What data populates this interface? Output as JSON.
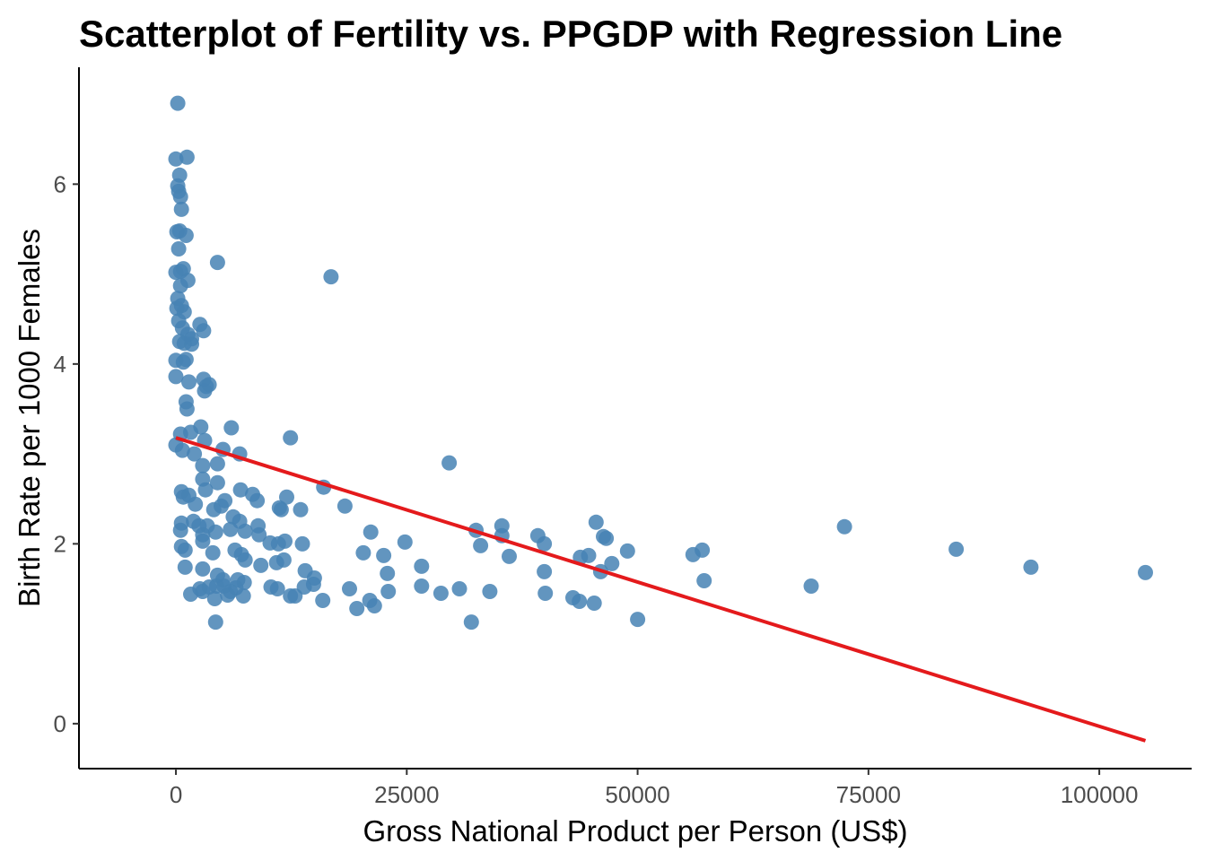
{
  "chart_data": {
    "type": "scatter",
    "title": "Scatterplot of Fertility vs. PPGDP with Regression Line",
    "xlabel": "Gross National Product per Person (US$)",
    "ylabel": "Birth Rate per 1000 Females",
    "xlim": [
      -10500,
      110000
    ],
    "ylim": [
      -0.5,
      7.3
    ],
    "xticks": [
      0,
      25000,
      50000,
      75000,
      100000
    ],
    "xtick_labels": [
      "0",
      "25000",
      "50000",
      "75000",
      "100000"
    ],
    "yticks": [
      0,
      2,
      4,
      6
    ],
    "ytick_labels": [
      "0",
      "2",
      "4",
      "6"
    ],
    "grid": false,
    "legend": "none",
    "point_color": "#4682B4",
    "line_color": "#E41A1C",
    "regression_line": {
      "x": [
        0,
        105000
      ],
      "y": [
        3.18,
        -0.19
      ]
    },
    "points": [
      [
        200,
        6.9
      ],
      [
        1200,
        6.3
      ],
      [
        0,
        6.28
      ],
      [
        400,
        6.1
      ],
      [
        200,
        5.98
      ],
      [
        300,
        5.92
      ],
      [
        500,
        5.86
      ],
      [
        600,
        5.72
      ],
      [
        400,
        5.48
      ],
      [
        100,
        5.47
      ],
      [
        1100,
        5.43
      ],
      [
        300,
        5.28
      ],
      [
        4500,
        5.13
      ],
      [
        16800,
        4.97
      ],
      [
        800,
        5.06
      ],
      [
        0,
        5.02
      ],
      [
        500,
        5.03
      ],
      [
        1300,
        4.93
      ],
      [
        500,
        4.87
      ],
      [
        200,
        4.73
      ],
      [
        600,
        4.65
      ],
      [
        100,
        4.62
      ],
      [
        900,
        4.58
      ],
      [
        300,
        4.48
      ],
      [
        2600,
        4.44
      ],
      [
        700,
        4.4
      ],
      [
        3000,
        4.37
      ],
      [
        1300,
        4.33
      ],
      [
        1700,
        4.28
      ],
      [
        1700,
        4.22
      ],
      [
        400,
        4.25
      ],
      [
        900,
        4.23
      ],
      [
        1100,
        4.05
      ],
      [
        0,
        4.04
      ],
      [
        800,
        4.02
      ],
      [
        3000,
        3.83
      ],
      [
        1400,
        3.8
      ],
      [
        3300,
        3.75
      ],
      [
        3600,
        3.77
      ],
      [
        0,
        3.86
      ],
      [
        3100,
        3.7
      ],
      [
        1100,
        3.58
      ],
      [
        1200,
        3.5
      ],
      [
        2700,
        3.3
      ],
      [
        6000,
        3.29
      ],
      [
        12400,
        3.18
      ],
      [
        500,
        3.22
      ],
      [
        1600,
        3.24
      ],
      [
        3100,
        3.15
      ],
      [
        0,
        3.1
      ],
      [
        700,
        3.04
      ],
      [
        5100,
        3.05
      ],
      [
        6900,
        3.0
      ],
      [
        2000,
        3.0
      ],
      [
        4500,
        2.89
      ],
      [
        29600,
        2.9
      ],
      [
        2900,
        2.87
      ],
      [
        2900,
        2.72
      ],
      [
        4500,
        2.68
      ],
      [
        600,
        2.58
      ],
      [
        16000,
        2.63
      ],
      [
        3200,
        2.6
      ],
      [
        7000,
        2.6
      ],
      [
        800,
        2.52
      ],
      [
        1400,
        2.54
      ],
      [
        12000,
        2.52
      ],
      [
        8300,
        2.55
      ],
      [
        5300,
        2.48
      ],
      [
        4900,
        2.42
      ],
      [
        8800,
        2.48
      ],
      [
        2100,
        2.44
      ],
      [
        11400,
        2.38
      ],
      [
        13500,
        2.38
      ],
      [
        18300,
        2.42
      ],
      [
        11200,
        2.4
      ],
      [
        4100,
        2.38
      ],
      [
        6200,
        2.3
      ],
      [
        600,
        2.23
      ],
      [
        1900,
        2.25
      ],
      [
        2500,
        2.2
      ],
      [
        3400,
        2.2
      ],
      [
        6900,
        2.25
      ],
      [
        8900,
        2.2
      ],
      [
        72400,
        2.19
      ],
      [
        35300,
        2.2
      ],
      [
        45500,
        2.24
      ],
      [
        32500,
        2.15
      ],
      [
        21100,
        2.13
      ],
      [
        4300,
        2.13
      ],
      [
        2900,
        2.1
      ],
      [
        5900,
        2.16
      ],
      [
        7500,
        2.14
      ],
      [
        9000,
        2.1
      ],
      [
        10200,
        2.01
      ],
      [
        11100,
        2.0
      ],
      [
        11800,
        2.03
      ],
      [
        2900,
        2.03
      ],
      [
        24800,
        2.02
      ],
      [
        35300,
        2.09
      ],
      [
        39200,
        2.09
      ],
      [
        46300,
        2.08
      ],
      [
        46600,
        2.06
      ],
      [
        33000,
        1.98
      ],
      [
        39900,
        2.0
      ],
      [
        13700,
        2.0
      ],
      [
        500,
        2.15
      ],
      [
        600,
        1.97
      ],
      [
        1000,
        1.93
      ],
      [
        4000,
        1.9
      ],
      [
        6400,
        1.93
      ],
      [
        7100,
        1.88
      ],
      [
        20300,
        1.9
      ],
      [
        22500,
        1.87
      ],
      [
        48900,
        1.92
      ],
      [
        57000,
        1.93
      ],
      [
        56000,
        1.88
      ],
      [
        84500,
        1.94
      ],
      [
        43800,
        1.85
      ],
      [
        44700,
        1.87
      ],
      [
        36100,
        1.86
      ],
      [
        7500,
        1.82
      ],
      [
        10900,
        1.79
      ],
      [
        11700,
        1.82
      ],
      [
        47200,
        1.78
      ],
      [
        92600,
        1.74
      ],
      [
        1000,
        1.74
      ],
      [
        2900,
        1.72
      ],
      [
        26600,
        1.75
      ],
      [
        39900,
        1.69
      ],
      [
        46000,
        1.69
      ],
      [
        105000,
        1.68
      ],
      [
        14000,
        1.7
      ],
      [
        9200,
        1.76
      ],
      [
        4500,
        1.65
      ],
      [
        15000,
        1.62
      ],
      [
        22900,
        1.67
      ],
      [
        57200,
        1.59
      ],
      [
        5100,
        1.6
      ],
      [
        6700,
        1.6
      ],
      [
        7400,
        1.57
      ],
      [
        10300,
        1.52
      ],
      [
        13900,
        1.52
      ],
      [
        14900,
        1.55
      ],
      [
        26600,
        1.53
      ],
      [
        68800,
        1.53
      ],
      [
        2600,
        1.5
      ],
      [
        3600,
        1.52
      ],
      [
        5200,
        1.53
      ],
      [
        5900,
        1.47
      ],
      [
        4400,
        1.53
      ],
      [
        6500,
        1.51
      ],
      [
        11000,
        1.5
      ],
      [
        18800,
        1.5
      ],
      [
        28700,
        1.45
      ],
      [
        30700,
        1.5
      ],
      [
        34000,
        1.47
      ],
      [
        23000,
        1.47
      ],
      [
        2900,
        1.47
      ],
      [
        1600,
        1.44
      ],
      [
        5600,
        1.43
      ],
      [
        7300,
        1.42
      ],
      [
        12400,
        1.42
      ],
      [
        12900,
        1.42
      ],
      [
        4200,
        1.39
      ],
      [
        15900,
        1.37
      ],
      [
        21000,
        1.37
      ],
      [
        43000,
        1.4
      ],
      [
        43700,
        1.36
      ],
      [
        45300,
        1.34
      ],
      [
        19600,
        1.28
      ],
      [
        21500,
        1.31
      ],
      [
        40000,
        1.45
      ],
      [
        32000,
        1.13
      ],
      [
        50000,
        1.16
      ],
      [
        4300,
        1.13
      ]
    ]
  }
}
